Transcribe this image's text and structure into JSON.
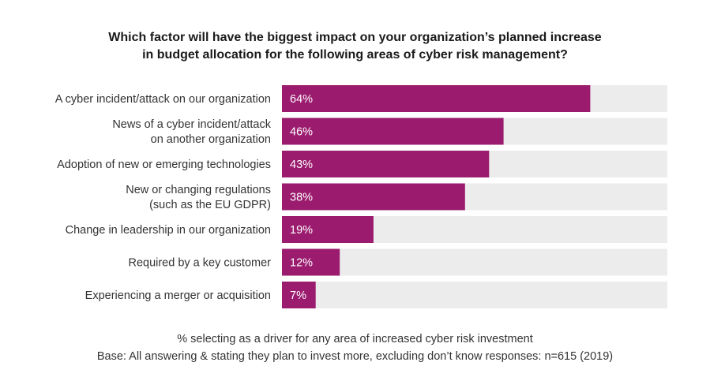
{
  "title": {
    "line1": "Which factor will have the biggest impact on your organization’s planned increase",
    "line2": "in budget allocation for the following areas of cyber risk management?"
  },
  "colors": {
    "bar": "#9b1b6e",
    "track": "#ececec",
    "label": "#333333",
    "value_text": "#ffffff"
  },
  "chart_data": {
    "type": "bar",
    "orientation": "horizontal",
    "title": "Which factor will have the biggest impact on your organization’s planned increase in budget allocation for the following areas of cyber risk management?",
    "categories": [
      [
        "A cyber incident/attack on our organization"
      ],
      [
        "News of a cyber incident/attack",
        "on another organization"
      ],
      [
        "Adoption of new or emerging technologies"
      ],
      [
        "New or changing regulations",
        "(such as the EU GDPR)"
      ],
      [
        "Change in leadership in our organization"
      ],
      [
        "Required by a key customer"
      ],
      [
        "Experiencing a merger or acquisition"
      ]
    ],
    "values": [
      64,
      46,
      43,
      38,
      19,
      12,
      7
    ],
    "value_labels": [
      "64%",
      "46%",
      "43%",
      "38%",
      "19%",
      "12%",
      "7%"
    ],
    "xlim": [
      0,
      80
    ],
    "unit": "%"
  },
  "footer": {
    "note": "% selecting as a driver for any area of increased cyber risk investment",
    "base": "Base: All answering & stating they plan to invest more, excluding don’t know responses: n=615 (2019)"
  }
}
